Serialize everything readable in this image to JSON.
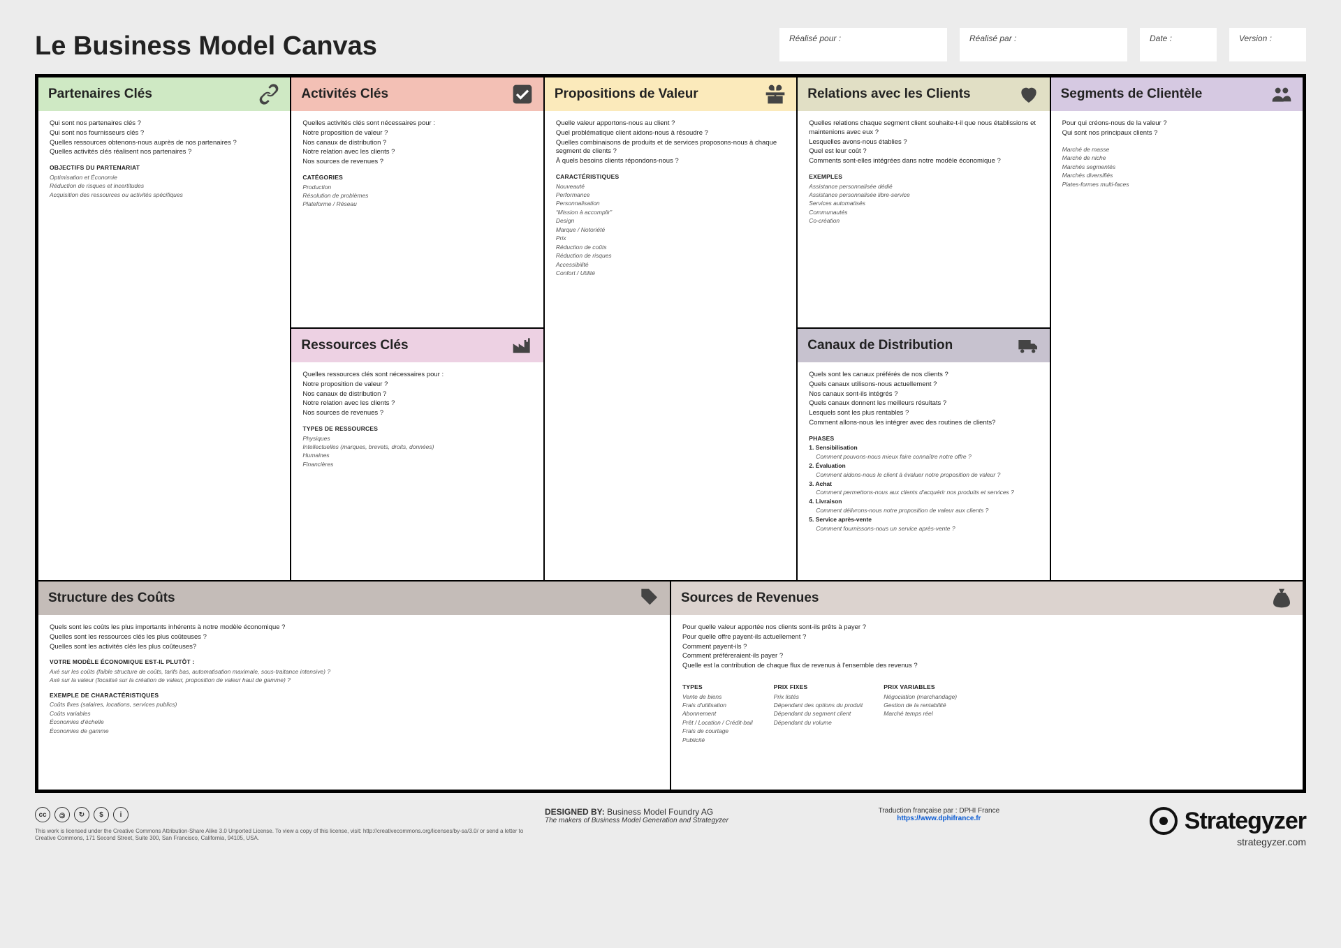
{
  "title": "Le Business Model Canvas",
  "meta": {
    "for_label": "Réalisé pour :",
    "by_label": "Réalisé par :",
    "date_label": "Date :",
    "version_label": "Version :"
  },
  "blocks": {
    "kp": {
      "title": "Partenaires Clés",
      "questions": [
        "Qui sont nos partenaires clés ?",
        "Qui sont nos fournisseurs clés ?",
        "Quelles ressources obtenons-nous auprès de nos partenaires ?",
        "Quelles activités clés réalisent nos partenaires ?"
      ],
      "sub1_title": "OBJECTIFS DU PARTENARIAT",
      "sub1_items": [
        "Optimisation et Économie",
        "Réduction de risques et incertitudes",
        "Acquisition des ressources ou activités spécifiques"
      ]
    },
    "ka": {
      "title": "Activités Clés",
      "questions": [
        "Quelles activités clés sont nécessaires pour :",
        "Notre proposition de valeur ?",
        "Nos canaux de distribution ?",
        "Notre relation avec les clients ?",
        "Nos sources de revenues ?"
      ],
      "sub1_title": "CATÉGORIES",
      "sub1_items": [
        "Production",
        "Résolution de problèmes",
        "Plateforme / Réseau"
      ]
    },
    "kr": {
      "title": "Ressources Clés",
      "questions": [
        "Quelles ressources clés sont nécessaires pour :",
        "Notre proposition de valeur ?",
        "Nos canaux de distribution ?",
        "Notre relation avec les clients ?",
        "Nos sources de revenues ?"
      ],
      "sub1_title": "TYPES DE RESSOURCES",
      "sub1_items": [
        "Physiques",
        "Intellectuelles (marques, brevets, droits, données)",
        "Humaines",
        "Financières"
      ]
    },
    "vp": {
      "title": "Propositions de Valeur",
      "questions": [
        "Quelle valeur apportons-nous au client ?",
        "Quel problématique client aidons-nous à résoudre ?",
        "Quelles combinaisons de produits et de services proposons-nous à chaque segment de clients ?",
        "À quels besoins clients répondons-nous ?"
      ],
      "sub1_title": "CARACTÉRISTIQUES",
      "sub1_items": [
        "Nouveauté",
        "Performance",
        "Personnalisation",
        "“Mission à accomplir”",
        "Design",
        "Marque / Notoriété",
        "Prix",
        "Réduction de coûts",
        "Réduction de risques",
        "Accessibilité",
        "Confort / Utilité"
      ]
    },
    "cr": {
      "title": "Relations avec les Clients",
      "questions": [
        "Quelles relations chaque segment client souhaite-t-il que nous établissions et maintenions avec eux ?",
        "Lesquelles avons-nous établies ?",
        "Quel est leur coût ?",
        "Comments sont-elles intégrées dans notre modèle économique ?"
      ],
      "sub1_title": "EXEMPLES",
      "sub1_items": [
        "Assistance personnalisée dédié",
        "Assistance personnalisée libre-service",
        "Services automatisés",
        "Communautés",
        "Co-création"
      ]
    },
    "ch": {
      "title": "Canaux de Distribution",
      "questions": [
        "Quels sont les canaux préférés de nos clients ?",
        "Quels canaux utilisons-nous actuellement ?",
        "Nos canaux sont-ils intégrés ?",
        "Quels canaux donnent les meilleurs résultats ?",
        "Lesquels sont les plus rentables ?",
        "Comment allons-nous les intégrer avec des routines de clients?"
      ],
      "sub1_title": "PHASES",
      "phases": [
        {
          "n": "1.",
          "t": "Sensibilisation",
          "q": "Comment pouvons-nous mieux faire connaître notre offre ?"
        },
        {
          "n": "2.",
          "t": "Évaluation",
          "q": "Comment aidons-nous le client à évaluer notre proposition de valeur ?"
        },
        {
          "n": "3.",
          "t": "Achat",
          "q": "Comment permettons-nous aux clients d'acquérir nos produits et services ?"
        },
        {
          "n": "4.",
          "t": "Livraison",
          "q": "Comment délivrons-nous notre proposition de valeur aux clients ?"
        },
        {
          "n": "5.",
          "t": "Service après-vente",
          "q": "Comment fournissons-nous un service après-vente ?"
        }
      ]
    },
    "cs": {
      "title": "Segments de Clientèle",
      "questions": [
        "Pour qui créons-nous de la valeur ?",
        "Qui sont nos principaux clients ?"
      ],
      "sub1_items": [
        "Marché de masse",
        "Marché de niche",
        "Marchés segmentés",
        "Marchés diversifiés",
        "Plates-formes multi-faces"
      ]
    },
    "cost": {
      "title": "Structure des Coûts",
      "questions": [
        "Quels sont les coûts les plus importants inhérents à notre modèle économique ?",
        "Quelles sont les ressources clés les plus coûteuses ?",
        "Quelles sont les activités clés les plus coûteuses?"
      ],
      "sub1_title": "VOTRE MODÈLE ÉCONOMIQUE EST-IL PLUTÔT :",
      "sub1_items": [
        "Axé sur les coûts (faible structure de coûts, tarifs bas, automatisation maximale, sous-traitance intensive) ?",
        "Axé sur la valeur (focalisé sur la création de valeur, proposition de valeur haut de gamme) ?"
      ],
      "sub2_title": "EXEMPLE DE CHARACTÉRISTIQUES",
      "sub2_items": [
        "Coûts fixes (salaires, locations, services publics)",
        "Coûts variables",
        "Économies d'échelle",
        "Économies de gamme"
      ]
    },
    "rev": {
      "title": "Sources de Revenues",
      "questions": [
        "Pour quelle valeur apportée nos clients sont-ils prêts à payer ?",
        "Pour quelle offre payent-ils actuellement ?",
        "Comment payent-ils ?",
        "Comment préféreraient-ils payer ?",
        "Quelle est la contribution de chaque flux de revenus à l'ensemble des revenus ?"
      ],
      "col_types_title": "TYPES",
      "col_types": [
        "Vente de biens",
        "Frais d'utilisation",
        "Abonnement",
        "Prêt / Location / Crédit-bail",
        "Frais de courtage",
        "Publicité"
      ],
      "col_fixed_title": "PRIX FIXES",
      "col_fixed": [
        "Prix listés",
        "Dépendant des options du produit",
        "Dépendant du segment client",
        "Dépendant du volume"
      ],
      "col_var_title": "PRIX VARIABLES",
      "col_var": [
        "Négociation (marchandage)",
        "Gestion de la rentabilité",
        "Marché temps réel"
      ]
    }
  },
  "footer": {
    "designed_by_label": "DESIGNED BY:",
    "designed_by": "Business Model Foundry AG",
    "designed_by_sub": "The makers of Business Model Generation and Strategyzer",
    "license": "This work is licensed under the Creative Commons Attribution-Share Alike 3.0 Unported License. To view a copy of this license, visit: http://creativecommons.org/licenses/by-sa/3.0/ or send a letter to Creative Commons, 171 Second Street, Suite 300, San Francisco, California, 94105, USA.",
    "trad": "Traduction française par : DPHI France",
    "trad_url": "https://www.dphifrance.fr",
    "brand": "Strategyzer",
    "brand_url": "strategyzer.com"
  },
  "colors": {
    "kp": "#cfe9c4",
    "ka": "#f3c0b5",
    "kr": "#edd1e3",
    "vp": "#fbeabb",
    "cr": "#e1dfc5",
    "ch": "#c7c2cf",
    "cs": "#d6c9e2",
    "cost": "#c4bcb8",
    "rev": "#dcd3cf",
    "page_bg": "#ececec",
    "border": "#000000",
    "text": "#1a1a1a",
    "muted": "#555555"
  }
}
